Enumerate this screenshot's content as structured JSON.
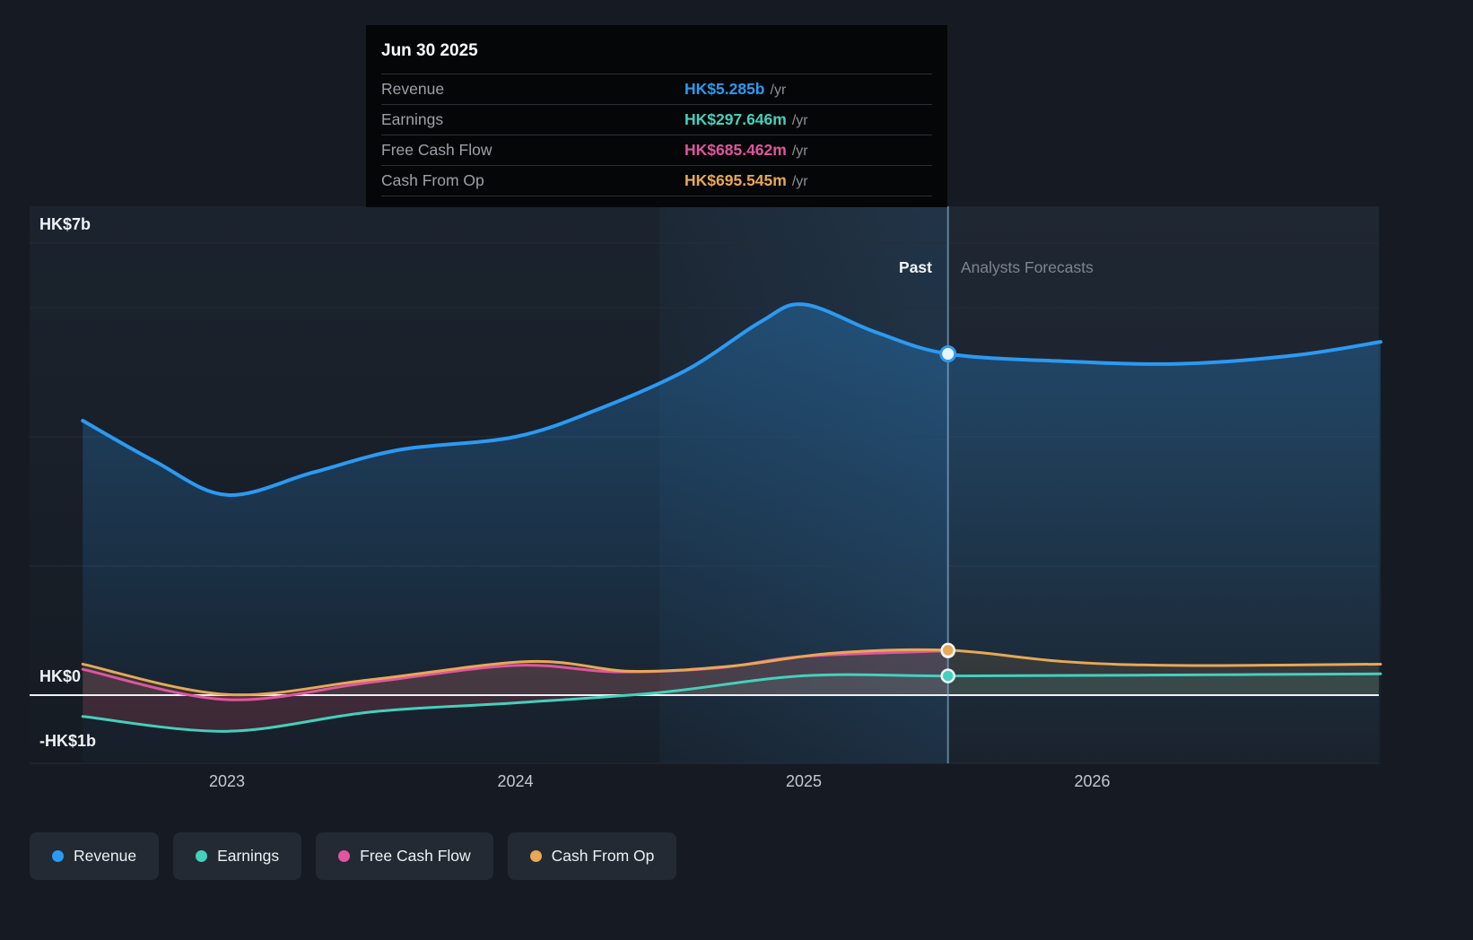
{
  "tooltip": {
    "date": "Jun 30 2025",
    "rows": [
      {
        "label": "Revenue",
        "value": "HK$5.285b",
        "suffix": "/yr",
        "color": "#2b9af3"
      },
      {
        "label": "Earnings",
        "value": "HK$297.646m",
        "suffix": "/yr",
        "color": "#45d0bc"
      },
      {
        "label": "Free Cash Flow",
        "value": "HK$685.462m",
        "suffix": "/yr",
        "color": "#e0569f"
      },
      {
        "label": "Cash From Op",
        "value": "HK$695.545m",
        "suffix": "/yr",
        "color": "#e8a855"
      }
    ]
  },
  "sections": {
    "past_label": "Past",
    "forecast_label": "Analysts Forecasts"
  },
  "axis": {
    "y_labels": [
      {
        "text": "HK$7b",
        "value": 7
      },
      {
        "text": "HK$0",
        "value": 0
      },
      {
        "text": "-HK$1b",
        "value": -1
      }
    ],
    "x_labels": [
      {
        "text": "2023",
        "year": 2023
      },
      {
        "text": "2024",
        "year": 2024
      },
      {
        "text": "2025",
        "year": 2025
      },
      {
        "text": "2026",
        "year": 2026
      }
    ]
  },
  "legend": [
    {
      "label": "Revenue",
      "color": "#2b9af3"
    },
    {
      "label": "Earnings",
      "color": "#45d0bc"
    },
    {
      "label": "Free Cash Flow",
      "color": "#e0569f"
    },
    {
      "label": "Cash From Op",
      "color": "#e8a855"
    }
  ],
  "chart_data": {
    "type": "line",
    "currency": "HK$",
    "values_unit": "HK$ billions",
    "xlim": [
      2022.45,
      2027.0
    ],
    "ylim": [
      -1.05,
      7
    ],
    "gridlines": [
      7,
      6,
      4,
      2,
      0
    ],
    "divider_year": 2025.5,
    "divider_date_label": "Jun 30 2025",
    "highlight_band": [
      2024.5,
      2025.5
    ],
    "series": [
      {
        "name": "Revenue",
        "color": "#2b9af3",
        "fill": "toBottom",
        "x": [
          2022.5,
          2022.75,
          2023.0,
          2023.3,
          2023.6,
          2024.0,
          2024.3,
          2024.6,
          2024.85,
          2025.0,
          2025.25,
          2025.5,
          2025.9,
          2026.3,
          2026.7,
          2027.0
        ],
        "values": [
          4.25,
          3.62,
          3.1,
          3.45,
          3.8,
          4.0,
          4.45,
          5.05,
          5.78,
          6.05,
          5.62,
          5.285,
          5.17,
          5.13,
          5.26,
          5.47
        ],
        "marker_value": 5.285
      },
      {
        "name": "Earnings",
        "color": "#45d0bc",
        "fill": "toZero",
        "x": [
          2022.5,
          2023.0,
          2023.5,
          2024.0,
          2024.5,
          2025.0,
          2025.5,
          2026.2,
          2027.0
        ],
        "values": [
          -0.33,
          -0.56,
          -0.26,
          -0.12,
          0.04,
          0.3,
          0.2976,
          0.31,
          0.33
        ],
        "marker_value": 0.2976
      },
      {
        "name": "Free Cash Flow",
        "color": "#e0569f",
        "fill": "toZero",
        "x": [
          2022.5,
          2023.0,
          2023.5,
          2024.0,
          2024.35,
          2024.7,
          2025.0,
          2025.5
        ],
        "values": [
          0.4,
          -0.07,
          0.2,
          0.46,
          0.36,
          0.42,
          0.6,
          0.6855
        ],
        "marker_value": 0.6855
      },
      {
        "name": "Cash From Op",
        "color": "#e8a855",
        "fill": "toZero",
        "x": [
          2022.5,
          2023.0,
          2023.5,
          2024.05,
          2024.4,
          2024.75,
          2025.1,
          2025.5,
          2025.9,
          2026.3,
          2027.0
        ],
        "values": [
          0.48,
          0.01,
          0.24,
          0.52,
          0.37,
          0.45,
          0.65,
          0.6955,
          0.52,
          0.46,
          0.48
        ],
        "marker_value": 0.6955
      }
    ]
  }
}
